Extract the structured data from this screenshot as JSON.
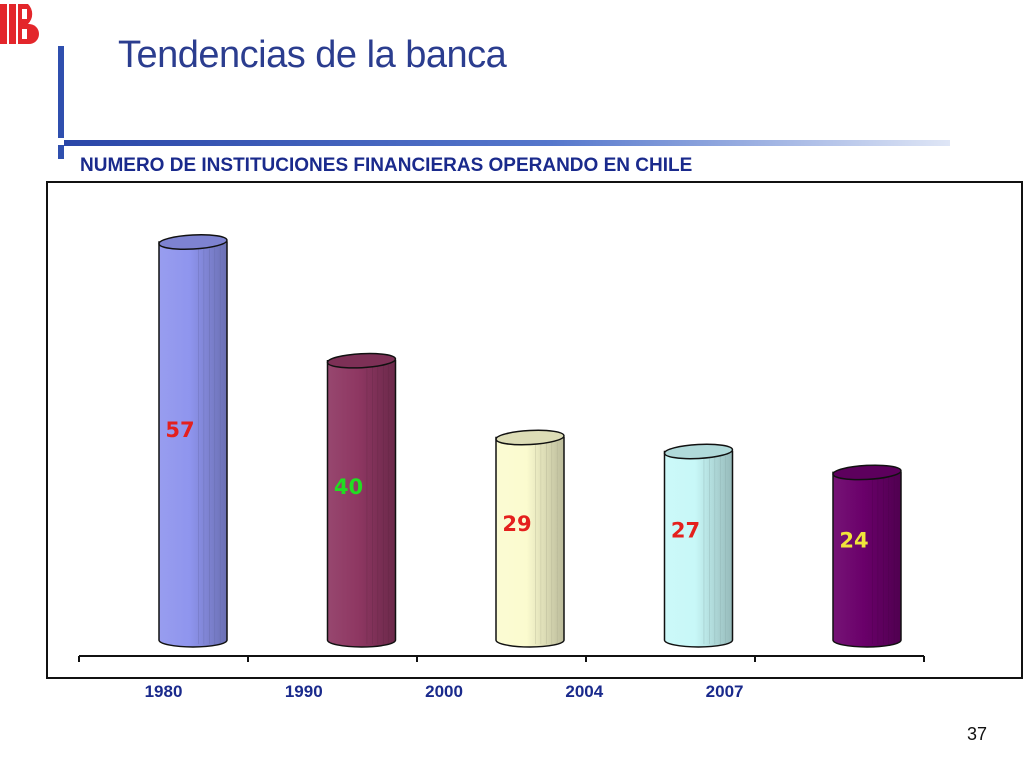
{
  "slide": {
    "title": "Tendencias de la banca",
    "page_number": "37"
  },
  "logo": {
    "icon": "bank-logo-icon",
    "color": "#e3262b"
  },
  "chart_data": {
    "type": "bar",
    "title": "NUMERO DE INSTITUCIONES FINANCIERAS OPERANDO EN CHILE",
    "categories": [
      "1980",
      "1990",
      "2000",
      "2004",
      "2007"
    ],
    "values": [
      57,
      40,
      29,
      27,
      24
    ],
    "bar_colors": [
      "#8f95ee",
      "#8e3762",
      "#fbfbcf",
      "#c8f8f8",
      "#6a006a"
    ],
    "label_colors": [
      "#e4201d",
      "#22dd22",
      "#e4201d",
      "#e4201d",
      "#f0e43a"
    ],
    "xlabel": "",
    "ylabel": "",
    "ylim": [
      0,
      60
    ],
    "grid": false
  }
}
